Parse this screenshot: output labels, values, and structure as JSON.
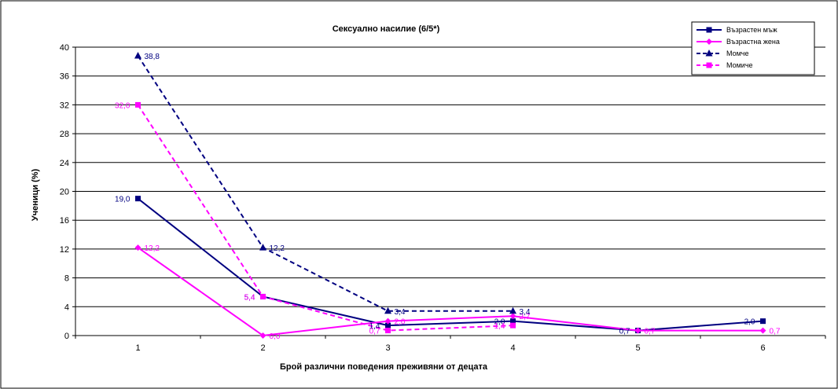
{
  "chart_data": {
    "type": "line",
    "title": "Сексуално насилие (6/5*)",
    "xlabel": "Брой  различни поведения  преживяни от децата",
    "ylabel": "Ученици (%)",
    "categories": [
      "1",
      "2",
      "3",
      "4",
      "5",
      "6"
    ],
    "ylim": [
      0,
      40
    ],
    "yticks": [
      "0",
      "4",
      "8",
      "12",
      "16",
      "20",
      "24",
      "28",
      "32",
      "36",
      "40"
    ],
    "grid": true,
    "legend_position": "top-right",
    "series": [
      {
        "name": "Възрастен мъж",
        "color": "#000080",
        "dash": "solid",
        "marker": "square",
        "values": [
          19.0,
          5.4,
          1.4,
          2.0,
          0.7,
          2.0
        ],
        "labels": [
          "19,0",
          "5,4",
          "1,4",
          "2,0",
          "0,7",
          "2,0"
        ]
      },
      {
        "name": "Възрастна жена",
        "color": "#FF00FF",
        "dash": "solid",
        "marker": "diamond",
        "values": [
          12.2,
          0.0,
          2.0,
          2.7,
          0.7,
          0.7
        ],
        "labels": [
          "12,2",
          "0,0",
          "2,0",
          "2,7",
          "0,7",
          "0,7"
        ]
      },
      {
        "name": "Момче",
        "color": "#000080",
        "dash": "dashed",
        "marker": "triangle",
        "values": [
          38.8,
          12.2,
          3.4,
          3.4,
          null,
          null
        ],
        "labels": [
          "38,8",
          "12,2",
          "3,4",
          "3,4",
          "",
          ""
        ]
      },
      {
        "name": "Момиче",
        "color": "#FF00FF",
        "dash": "dashed",
        "marker": "square",
        "values": [
          32.0,
          5.4,
          0.7,
          1.4,
          null,
          null
        ],
        "labels": [
          "32,0",
          "5,4",
          "0,7",
          "1,4",
          "",
          ""
        ]
      }
    ]
  }
}
